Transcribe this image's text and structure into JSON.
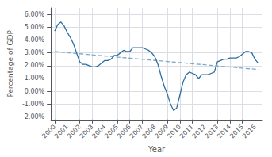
{
  "chart_data": {
    "type": "line",
    "xlabel": "Year",
    "ylabel": "Percentage of GDP",
    "xlim": [
      1999.7,
      2016.6
    ],
    "xticks": [
      2000,
      2001,
      2002,
      2003,
      2004,
      2005,
      2006,
      2007,
      2008,
      2009,
      2010,
      2011,
      2012,
      2013,
      2014,
      2015,
      2016
    ],
    "ylim": [
      -0.022,
      0.065
    ],
    "yticks": [
      {
        "value": -0.02,
        "label": "-2.00%"
      },
      {
        "value": -0.01,
        "label": "-1.00%"
      },
      {
        "value": 0.0,
        "label": "0.00%"
      },
      {
        "value": 0.01,
        "label": "1.00%"
      },
      {
        "value": 0.02,
        "label": "2.00%"
      },
      {
        "value": 0.03,
        "label": "3.00%"
      },
      {
        "value": 0.04,
        "label": "4.00%"
      },
      {
        "value": 0.05,
        "label": "5.00%"
      },
      {
        "value": 0.06,
        "label": "6.00%"
      }
    ],
    "grid": true,
    "series": [
      {
        "color": "#2e6da4",
        "line_style": "solid",
        "x": [
          2000,
          2000.25,
          2000.5,
          2000.75,
          2001,
          2001.25,
          2001.5,
          2001.75,
          2002,
          2002.25,
          2002.5,
          2002.75,
          2003,
          2003.25,
          2003.5,
          2003.75,
          2004,
          2004.25,
          2004.5,
          2004.75,
          2005,
          2005.25,
          2005.5,
          2005.75,
          2006,
          2006.25,
          2006.5,
          2006.75,
          2007,
          2007.25,
          2007.5,
          2007.75,
          2008,
          2008.25,
          2008.5,
          2008.75,
          2009,
          2009.25,
          2009.5,
          2009.75,
          2010,
          2010.25,
          2010.5,
          2010.75,
          2011,
          2011.25,
          2011.5,
          2011.75,
          2012,
          2012.25,
          2012.5,
          2012.75,
          2013,
          2013.25,
          2013.5,
          2013.75,
          2014,
          2014.25,
          2014.5,
          2014.75,
          2015,
          2015.25,
          2015.5,
          2015.75,
          2016,
          2016.25
        ],
        "values": [
          0.047,
          0.052,
          0.054,
          0.051,
          0.046,
          0.042,
          0.037,
          0.03,
          0.023,
          0.021,
          0.021,
          0.02,
          0.019,
          0.019,
          0.02,
          0.022,
          0.024,
          0.024,
          0.025,
          0.028,
          0.028,
          0.03,
          0.032,
          0.031,
          0.031,
          0.034,
          0.034,
          0.034,
          0.034,
          0.033,
          0.032,
          0.03,
          0.027,
          0.021,
          0.012,
          0.004,
          -0.002,
          -0.01,
          -0.015,
          -0.013,
          -0.003,
          0.007,
          0.013,
          0.015,
          0.014,
          0.013,
          0.01,
          0.013,
          0.013,
          0.013,
          0.014,
          0.015,
          0.023,
          0.024,
          0.025,
          0.025,
          0.026,
          0.026,
          0.026,
          0.027,
          0.029,
          0.031,
          0.031,
          0.03,
          0.025,
          0.022
        ]
      },
      {
        "color": "#7faacc",
        "line_style": "dashed",
        "x": [
          2000,
          2016.25
        ],
        "values": [
          0.031,
          0.017
        ]
      }
    ]
  }
}
